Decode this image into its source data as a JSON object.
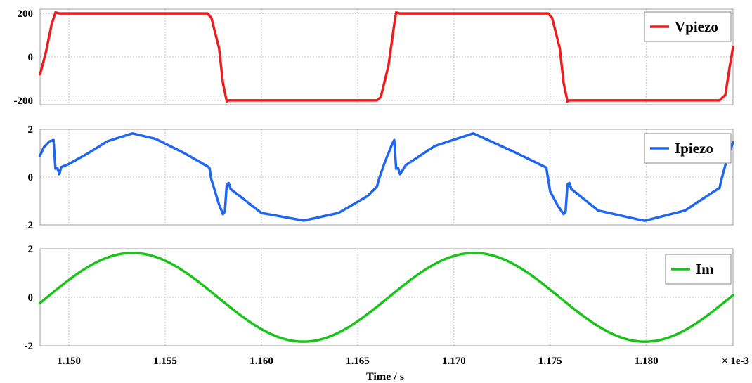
{
  "chart_data": {
    "type": "line",
    "xlabel": "Time / s",
    "x_multiplier": "× 1e-3",
    "x_ticks": [
      "1.150",
      "1.155",
      "1.160",
      "1.165",
      "1.170",
      "1.175",
      "1.180"
    ],
    "x_tick_values": [
      1.15,
      1.155,
      1.16,
      1.165,
      1.17,
      1.175,
      1.18
    ],
    "xlim": [
      1.1485,
      1.1845
    ],
    "grid": true,
    "legend_position": "top-right",
    "panels": [
      {
        "series_name": "Vpiezo",
        "color": "#ee1c1c",
        "ylim": [
          -220,
          220
        ],
        "y_ticks": [
          "200",
          "0",
          "-200"
        ],
        "y_tick_values": [
          200,
          0,
          -200
        ],
        "x": [
          1.1485,
          1.1488,
          1.1491,
          1.1493,
          1.1495,
          1.1572,
          1.1574,
          1.1578,
          1.158,
          1.1582,
          1.1583,
          1.1599,
          1.166,
          1.1662,
          1.1666,
          1.1669,
          1.167,
          1.1672,
          1.1749,
          1.1751,
          1.1755,
          1.1757,
          1.1759,
          1.176,
          1.1775,
          1.1838,
          1.1841,
          1.1843,
          1.1845
        ],
        "y": [
          -80,
          20,
          150,
          205,
          200,
          200,
          180,
          40,
          -120,
          -205,
          -200,
          -200,
          -200,
          -185,
          -40,
          150,
          205,
          200,
          200,
          180,
          40,
          -120,
          -205,
          -200,
          -200,
          -200,
          -175,
          -60,
          45
        ]
      },
      {
        "series_name": "Ipiezo",
        "color": "#1f66f0",
        "ylim": [
          -2,
          2
        ],
        "y_ticks": [
          "2",
          "0",
          "-2"
        ],
        "y_tick_values": [
          2,
          0,
          -2
        ],
        "x": [
          1.1485,
          1.1487,
          1.149,
          1.1492,
          1.1493,
          1.1494,
          1.1495,
          1.1496,
          1.15,
          1.151,
          1.152,
          1.1533,
          1.1545,
          1.156,
          1.1572,
          1.1573,
          1.1574,
          1.1578,
          1.158,
          1.1581,
          1.1582,
          1.1583,
          1.1584,
          1.16,
          1.1622,
          1.164,
          1.1655,
          1.166,
          1.1661,
          1.1664,
          1.1668,
          1.1669,
          1.167,
          1.1671,
          1.1672,
          1.1675,
          1.169,
          1.171,
          1.173,
          1.1748,
          1.1749,
          1.175,
          1.1754,
          1.1757,
          1.1758,
          1.1759,
          1.176,
          1.1761,
          1.1775,
          1.1799,
          1.182,
          1.1838,
          1.1839,
          1.1842,
          1.1845
        ],
        "y": [
          0.9,
          1.25,
          1.5,
          1.55,
          0.35,
          0.38,
          0.12,
          0.42,
          0.55,
          1.0,
          1.5,
          1.83,
          1.6,
          1.0,
          0.45,
          0.38,
          -0.1,
          -1.15,
          -1.55,
          -1.45,
          -0.3,
          -0.25,
          -0.5,
          -1.5,
          -1.82,
          -1.5,
          -0.8,
          -0.4,
          -0.1,
          0.6,
          1.4,
          1.55,
          0.35,
          0.38,
          0.12,
          0.5,
          1.3,
          1.83,
          1.1,
          0.4,
          -0.1,
          -0.6,
          -1.2,
          -1.55,
          -1.45,
          -0.3,
          -0.25,
          -0.5,
          -1.4,
          -1.83,
          -1.4,
          -0.45,
          -0.1,
          0.8,
          1.45
        ]
      },
      {
        "series_name": "Im",
        "color": "#19c419",
        "ylim": [
          -2,
          2
        ],
        "y_ticks": [
          "2",
          "0",
          "-2"
        ],
        "y_tick_values": [
          2,
          0,
          -2
        ],
        "amplitude": 1.83,
        "period": 0.01775,
        "peak_x": 1.1533
      }
    ]
  }
}
